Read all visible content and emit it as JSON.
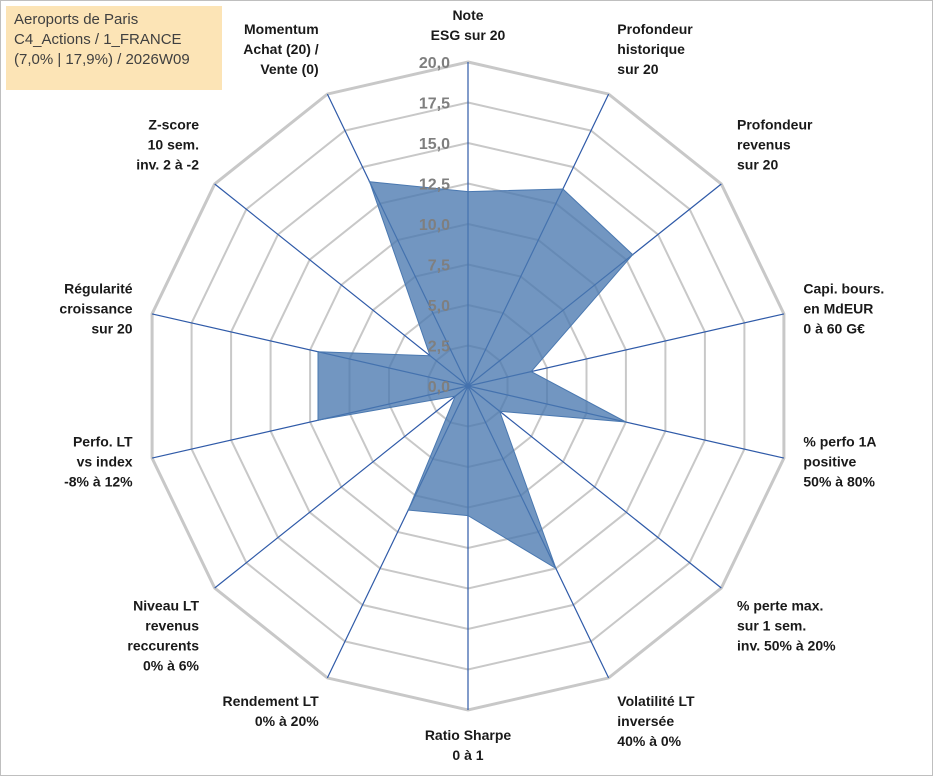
{
  "info_box": {
    "line1": "Aeroports de Paris",
    "line2": "C4_Actions / 1_FRANCE",
    "line3": "(7,0% | 17,9%) / 2026W09"
  },
  "chart_data": {
    "type": "radar",
    "rmin": 0,
    "rmax": 20,
    "tick_labels": [
      "0,0",
      "2,5",
      "5,0",
      "7,5",
      "10,0",
      "12,5",
      "15,0",
      "17,5",
      "20,0"
    ],
    "axes": [
      [
        "Note",
        "ESG sur 20"
      ],
      [
        "Profondeur",
        "historique",
        "sur 20"
      ],
      [
        "Profondeur",
        "revenus",
        "sur 20"
      ],
      [
        "Capi. bours.",
        "en MdEUR",
        "0 à 60 G€"
      ],
      [
        "% perfo 1A",
        "positive",
        "50% à 80%"
      ],
      [
        "% perte max.",
        "sur 1 sem.",
        "inv. 50% à 20%"
      ],
      [
        "Volatilité LT",
        "inversée",
        "40% à 0%"
      ],
      [
        "Ratio Sharpe",
        "0 à 1"
      ],
      [
        "Rendement LT",
        "0% à 20%"
      ],
      [
        "Niveau LT",
        "revenus",
        "reccurents",
        "0% à 6%"
      ],
      [
        "Perfo. LT",
        "vs index",
        "-8% à 12%"
      ],
      [
        "Régularité",
        "croissance",
        "sur 20"
      ],
      [
        "Z-score",
        "10 sem.",
        "inv. 2 à -2"
      ],
      [
        "Momentum",
        "Achat (20) /",
        "Vente (0)"
      ]
    ],
    "series": [
      {
        "values": [
          12.0,
          13.5,
          13.0,
          4.0,
          10.0,
          2.5,
          12.5,
          8.0,
          8.5,
          1.0,
          9.5,
          9.5,
          3.0,
          14.0
        ]
      }
    ],
    "colors": {
      "fill": "#4a78b0",
      "fill_opacity": 0.78,
      "grid": "#c8c8c8",
      "spoke": "#2f5aa8",
      "text": "#1a1a1a",
      "tick": "#7f7f7f"
    },
    "grid": true
  }
}
